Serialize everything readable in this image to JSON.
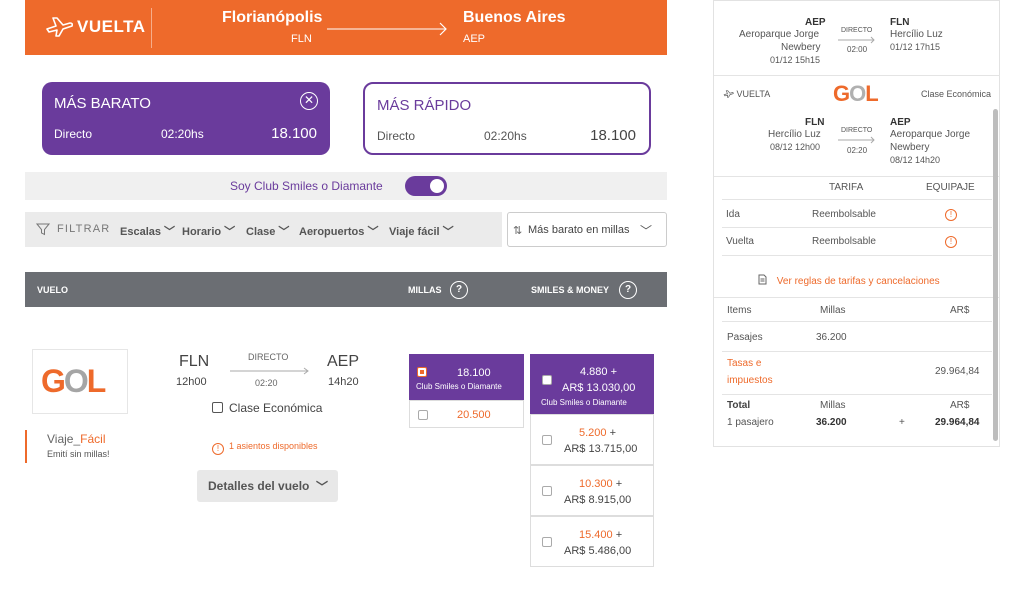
{
  "header": {
    "trip_label": "VUELTA",
    "origin_city": "Florianópolis",
    "origin_code": "FLN",
    "dest_city": "Buenos Aires",
    "dest_code": "AEP"
  },
  "cards": {
    "cheapest": {
      "title": "MÁS BARATO",
      "type": "Directo",
      "duration": "02:20hs",
      "price": "18.100"
    },
    "fastest": {
      "title": "MÁS RÁPIDO",
      "type": "Directo",
      "duration": "02:20hs",
      "price": "18.100"
    }
  },
  "club_toggle": {
    "label": "Soy Club Smiles o Diamante",
    "on": true
  },
  "filters": {
    "filter_label": "FILTRAR",
    "items": [
      "Escalas",
      "Horario",
      "Clase",
      "Aeropuertos",
      "Viaje fácil"
    ],
    "sort": "Más barato en millas"
  },
  "table_header": {
    "flight": "VUELO",
    "miles": "MILLAS",
    "smiles_money": "SMILES & MONEY"
  },
  "flight": {
    "airline_logo": "GOL",
    "viaje_facil_a": "Viaje",
    "viaje_facil_b": "Fácil",
    "viaje_facil_sub": "Emití sin millas!",
    "origin": "FLN",
    "origin_time": "12h00",
    "direct": "DIRECTO",
    "duration": "02:20",
    "dest": "AEP",
    "dest_time": "14h20",
    "cabin": "Clase Económica",
    "seats": "1 asientos disponibles",
    "details_button": "Detalles del vuelo"
  },
  "miles_options": {
    "selected_value": "18.100",
    "selected_sub": "Club Smiles o Diamante",
    "other_value": "20.500"
  },
  "smiles_money": {
    "selected": {
      "miles": "4.880 +",
      "money": "AR$ 13.030,00",
      "sub": "Club Smiles o Diamante"
    },
    "options": [
      {
        "miles": "5.200",
        "plus": "+",
        "money": "AR$ 13.715,00"
      },
      {
        "miles": "10.300",
        "plus": "+",
        "money": "AR$ 8.915,00"
      },
      {
        "miles": "15.400",
        "plus": "+",
        "money": "AR$ 5.486,00"
      }
    ]
  },
  "summary": {
    "outbound": {
      "from_code": "AEP",
      "from_name1": "Aeroparque Jorge",
      "from_name2": "Newbery",
      "from_time": "01/12 15h15",
      "direct": "DIRECTO",
      "duration": "02:00",
      "to_code": "FLN",
      "to_name": "Hercílio Luz",
      "to_time": "01/12 17h15"
    },
    "return_label": "VUELTA",
    "airline": "GOL",
    "cabin": "Clase Económica",
    "return": {
      "from_code": "FLN",
      "from_name": "Hercílio Luz",
      "from_time": "08/12 12h00",
      "direct": "DIRECTO",
      "duration": "02:20",
      "to_code": "AEP",
      "to_name1": "Aeroparque Jorge",
      "to_name2": "Newbery",
      "to_time": "08/12 14h20"
    },
    "fare_header": {
      "tarifa": "TARIFA",
      "equipaje": "EQUIPAJE"
    },
    "fare_rows": [
      {
        "leg": "Ida",
        "tarifa": "Reembolsable"
      },
      {
        "leg": "Vuelta",
        "tarifa": "Reembolsable"
      }
    ],
    "rules_link": "Ver reglas de tarifas y cancelaciones",
    "price_header": {
      "items": "Items",
      "millas": "Millas",
      "ars": "AR$"
    },
    "pasajes": {
      "label": "Pasajes",
      "millas": "36.200"
    },
    "tasas": {
      "label1": "Tasas e",
      "label2": "impuestos",
      "ars": "29.964,84"
    },
    "total": {
      "label": "Total",
      "pax": "1 pasajero",
      "millas_label": "Millas",
      "millas": "36.200",
      "plus": "+",
      "ars_label": "AR$",
      "ars": "29.964,84"
    }
  },
  "colors": {
    "accent": "#ee6a2b",
    "brand_purple": "#6a3b9c"
  }
}
